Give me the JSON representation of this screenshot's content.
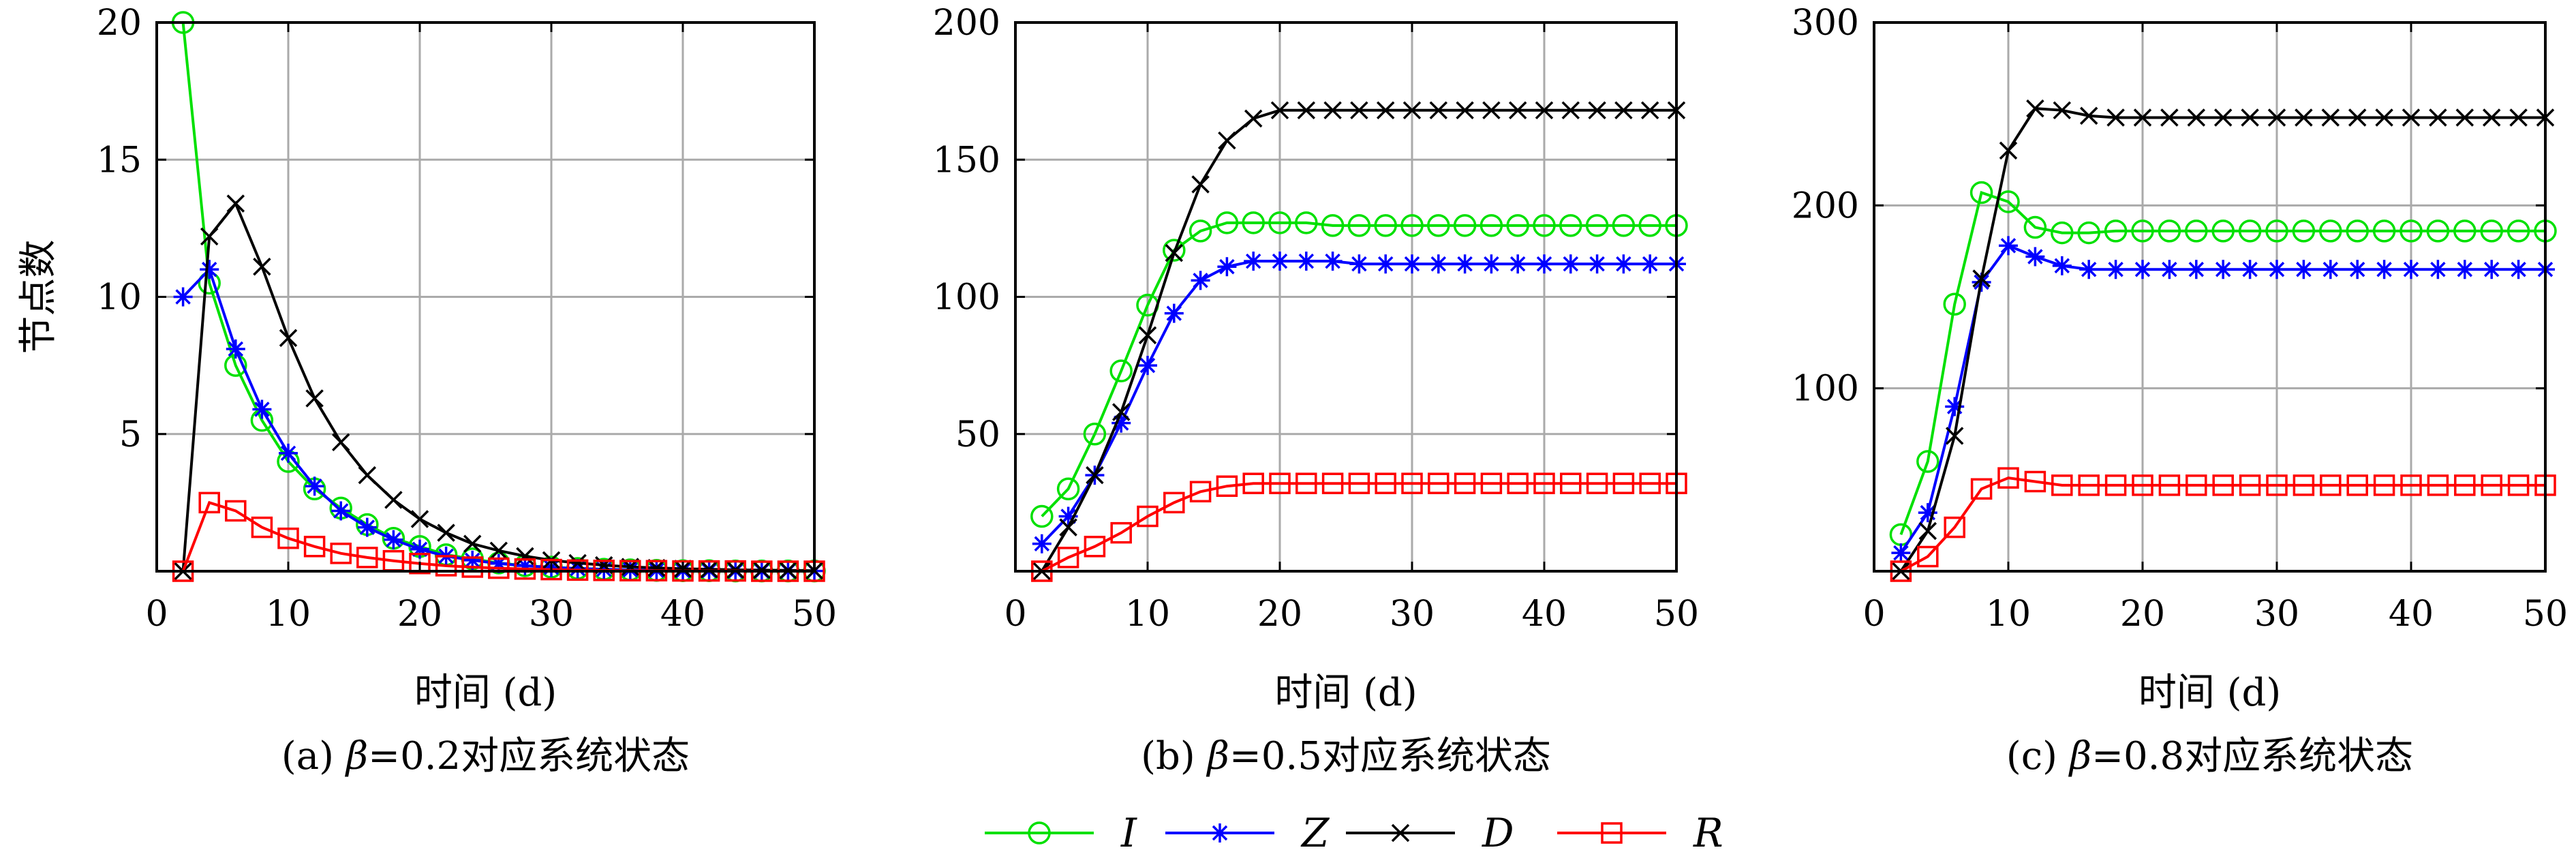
{
  "figure": {
    "legend": [
      {
        "key": "I",
        "label": "I",
        "color": "#00e000",
        "marker": "circle"
      },
      {
        "key": "Z",
        "label": "Z",
        "color": "#0000ff",
        "marker": "asterisk"
      },
      {
        "key": "D",
        "label": "D",
        "color": "#000000",
        "marker": "cross"
      },
      {
        "key": "R",
        "label": "R",
        "color": "#ff0000",
        "marker": "square"
      }
    ]
  },
  "chart_data": [
    {
      "type": "line",
      "caption_prefix": "(a) ",
      "caption_beta": "β",
      "caption_suffix": "=0.2对应系统状态",
      "xlabel": "时间 (d)",
      "ylabel": "节点数",
      "xlim": [
        0,
        50
      ],
      "ylim": [
        0,
        20
      ],
      "xticks": [
        0,
        10,
        20,
        30,
        40,
        50
      ],
      "yticks": [
        0,
        5,
        10,
        15,
        20
      ],
      "ytick_labels": [
        "",
        "5",
        "10",
        "15",
        "20"
      ],
      "grid": true,
      "x": [
        2,
        4,
        6,
        8,
        10,
        12,
        14,
        16,
        18,
        20,
        22,
        24,
        26,
        28,
        30,
        32,
        34,
        36,
        38,
        40,
        42,
        44,
        46,
        48,
        50
      ],
      "series": [
        {
          "name": "I",
          "values": [
            20,
            10.5,
            7.5,
            5.5,
            4.0,
            3.0,
            2.3,
            1.7,
            1.2,
            0.9,
            0.6,
            0.45,
            0.3,
            0.2,
            0.15,
            0.1,
            0.07,
            0.05,
            0.03,
            0.02,
            0.02,
            0.01,
            0.01,
            0.01,
            0.01
          ]
        },
        {
          "name": "Z",
          "values": [
            10,
            11,
            8.1,
            5.9,
            4.3,
            3.1,
            2.2,
            1.6,
            1.15,
            0.8,
            0.55,
            0.4,
            0.28,
            0.2,
            0.14,
            0.1,
            0.07,
            0.05,
            0.03,
            0.02,
            0.02,
            0.01,
            0.01,
            0.01,
            0.01
          ]
        },
        {
          "name": "D",
          "values": [
            0,
            12.2,
            13.4,
            11.1,
            8.5,
            6.3,
            4.7,
            3.5,
            2.6,
            1.9,
            1.4,
            1.0,
            0.75,
            0.55,
            0.4,
            0.3,
            0.22,
            0.16,
            0.12,
            0.09,
            0.07,
            0.05,
            0.04,
            0.03,
            0.02
          ]
        },
        {
          "name": "R",
          "values": [
            0,
            2.5,
            2.2,
            1.6,
            1.2,
            0.9,
            0.65,
            0.5,
            0.38,
            0.28,
            0.2,
            0.15,
            0.11,
            0.08,
            0.06,
            0.04,
            0.03,
            0.02,
            0.02,
            0.01,
            0.01,
            0.01,
            0.0,
            0.0,
            0.0
          ]
        }
      ]
    },
    {
      "type": "line",
      "caption_prefix": "(b) ",
      "caption_beta": "β",
      "caption_suffix": "=0.5对应系统状态",
      "xlabel": "时间 (d)",
      "ylabel": "",
      "xlim": [
        0,
        50
      ],
      "ylim": [
        0,
        200
      ],
      "xticks": [
        0,
        10,
        20,
        30,
        40,
        50
      ],
      "yticks": [
        0,
        50,
        100,
        150,
        200
      ],
      "ytick_labels": [
        "",
        "50",
        "100",
        "150",
        "200"
      ],
      "grid": true,
      "x": [
        2,
        4,
        6,
        8,
        10,
        12,
        14,
        16,
        18,
        20,
        22,
        24,
        26,
        28,
        30,
        32,
        34,
        36,
        38,
        40,
        42,
        44,
        46,
        48,
        50
      ],
      "series": [
        {
          "name": "I",
          "values": [
            20,
            30,
            50,
            73,
            97,
            117,
            124,
            127,
            127,
            127,
            127,
            126,
            126,
            126,
            126,
            126,
            126,
            126,
            126,
            126,
            126,
            126,
            126,
            126,
            126
          ]
        },
        {
          "name": "Z",
          "values": [
            10,
            20,
            35,
            54,
            75,
            94,
            106,
            111,
            113,
            113,
            113,
            113,
            112,
            112,
            112,
            112,
            112,
            112,
            112,
            112,
            112,
            112,
            112,
            112,
            112
          ]
        },
        {
          "name": "D",
          "values": [
            0,
            16,
            35,
            58,
            86,
            116,
            141,
            157,
            165,
            168,
            168,
            168,
            168,
            168,
            168,
            168,
            168,
            168,
            168,
            168,
            168,
            168,
            168,
            168,
            168
          ]
        },
        {
          "name": "R",
          "values": [
            0,
            5,
            9,
            14,
            20,
            25,
            29,
            31,
            32,
            32,
            32,
            32,
            32,
            32,
            32,
            32,
            32,
            32,
            32,
            32,
            32,
            32,
            32,
            32,
            32
          ]
        }
      ]
    },
    {
      "type": "line",
      "caption_prefix": "(c) ",
      "caption_beta": "β",
      "caption_suffix": "=0.8对应系统状态",
      "xlabel": "时间 (d)",
      "ylabel": "",
      "xlim": [
        0,
        50
      ],
      "ylim": [
        0,
        300
      ],
      "xticks": [
        0,
        10,
        20,
        30,
        40,
        50
      ],
      "yticks": [
        0,
        100,
        200,
        300
      ],
      "ytick_labels": [
        "",
        "100",
        "200",
        "300"
      ],
      "grid": true,
      "x": [
        2,
        4,
        6,
        8,
        10,
        12,
        14,
        16,
        18,
        20,
        22,
        24,
        26,
        28,
        30,
        32,
        34,
        36,
        38,
        40,
        42,
        44,
        46,
        48,
        50
      ],
      "series": [
        {
          "name": "I",
          "values": [
            20,
            60,
            146,
            207,
            202,
            188,
            185,
            185,
            186,
            186,
            186,
            186,
            186,
            186,
            186,
            186,
            186,
            186,
            186,
            186,
            186,
            186,
            186,
            186,
            186
          ]
        },
        {
          "name": "Z",
          "values": [
            10,
            32,
            90,
            158,
            178,
            172,
            167,
            165,
            165,
            165,
            165,
            165,
            165,
            165,
            165,
            165,
            165,
            165,
            165,
            165,
            165,
            165,
            165,
            165,
            165
          ]
        },
        {
          "name": "D",
          "values": [
            0,
            22,
            74,
            160,
            230,
            253,
            252,
            249,
            248,
            248,
            248,
            248,
            248,
            248,
            248,
            248,
            248,
            248,
            248,
            248,
            248,
            248,
            248,
            248,
            248
          ]
        },
        {
          "name": "R",
          "values": [
            0,
            8,
            24,
            45,
            51,
            49,
            47,
            47,
            47,
            47,
            47,
            47,
            47,
            47,
            47,
            47,
            47,
            47,
            47,
            47,
            47,
            47,
            47,
            47,
            47
          ]
        }
      ]
    }
  ]
}
